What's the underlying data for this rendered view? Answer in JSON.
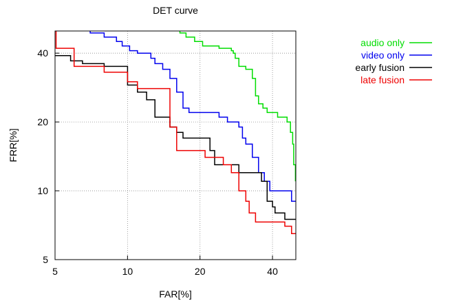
{
  "chart_data": {
    "type": "line",
    "title": "DET curve",
    "xlabel": "FAR[%]",
    "ylabel": "FRR[%]",
    "x_scale": "log",
    "y_scale": "log",
    "xlim": [
      5,
      50
    ],
    "ylim": [
      5,
      50
    ],
    "x_ticks": [
      5,
      10,
      20,
      40
    ],
    "y_ticks": [
      5,
      10,
      20,
      40
    ],
    "grid": true,
    "legend_position": "right",
    "series": [
      {
        "name": "audio only",
        "color": "#00dd00",
        "points": [
          [
            16.5,
            50
          ],
          [
            16.5,
            49
          ],
          [
            17.5,
            49
          ],
          [
            17.5,
            47
          ],
          [
            19,
            47
          ],
          [
            19,
            45
          ],
          [
            20.5,
            45
          ],
          [
            20.5,
            43
          ],
          [
            24,
            43
          ],
          [
            24,
            42
          ],
          [
            27,
            42
          ],
          [
            27,
            41
          ],
          [
            27.5,
            41
          ],
          [
            27.5,
            40
          ],
          [
            28,
            40
          ],
          [
            28,
            38
          ],
          [
            29,
            38
          ],
          [
            29,
            35
          ],
          [
            31,
            35
          ],
          [
            31,
            34
          ],
          [
            33,
            34
          ],
          [
            33,
            31
          ],
          [
            34,
            31
          ],
          [
            34,
            26
          ],
          [
            35,
            26
          ],
          [
            35,
            24
          ],
          [
            36.5,
            24
          ],
          [
            36.5,
            23
          ],
          [
            38,
            23
          ],
          [
            38,
            22
          ],
          [
            42,
            22
          ],
          [
            42,
            21
          ],
          [
            46,
            21
          ],
          [
            46,
            20
          ],
          [
            47.5,
            20
          ],
          [
            47.5,
            18
          ],
          [
            48.5,
            18
          ],
          [
            48.5,
            16
          ],
          [
            49,
            16
          ],
          [
            49,
            13
          ],
          [
            49.8,
            13
          ],
          [
            49.8,
            11
          ]
        ]
      },
      {
        "name": "video only",
        "color": "#0000ee",
        "points": [
          [
            7,
            50
          ],
          [
            7,
            49
          ],
          [
            8,
            49
          ],
          [
            8,
            47
          ],
          [
            9,
            47
          ],
          [
            9,
            45
          ],
          [
            9.5,
            45
          ],
          [
            9.5,
            43
          ],
          [
            10.2,
            43
          ],
          [
            10.2,
            41
          ],
          [
            11,
            41
          ],
          [
            11,
            40
          ],
          [
            12.5,
            40
          ],
          [
            12.5,
            38
          ],
          [
            13,
            38
          ],
          [
            13,
            36
          ],
          [
            14,
            36
          ],
          [
            14,
            34
          ],
          [
            15,
            34
          ],
          [
            15,
            31
          ],
          [
            16,
            31
          ],
          [
            16,
            27
          ],
          [
            17,
            27
          ],
          [
            17,
            23
          ],
          [
            18,
            23
          ],
          [
            18,
            22
          ],
          [
            24,
            22
          ],
          [
            24,
            21
          ],
          [
            26,
            21
          ],
          [
            26,
            20
          ],
          [
            29,
            20
          ],
          [
            29,
            19
          ],
          [
            30,
            19
          ],
          [
            30,
            17
          ],
          [
            31,
            17
          ],
          [
            31,
            16
          ],
          [
            33,
            16
          ],
          [
            33,
            14
          ],
          [
            35,
            14
          ],
          [
            35,
            12
          ],
          [
            37,
            12
          ],
          [
            37,
            11
          ],
          [
            39,
            11
          ],
          [
            39,
            10
          ],
          [
            48,
            10
          ],
          [
            48,
            9
          ],
          [
            50,
            9
          ]
        ]
      },
      {
        "name": "early fusion",
        "color": "#000000",
        "points": [
          [
            5,
            39
          ],
          [
            5.8,
            39
          ],
          [
            5.8,
            37
          ],
          [
            6.5,
            37
          ],
          [
            6.5,
            36
          ],
          [
            8,
            36
          ],
          [
            8,
            35
          ],
          [
            10,
            35
          ],
          [
            10,
            29
          ],
          [
            11,
            29
          ],
          [
            11,
            27
          ],
          [
            12,
            27
          ],
          [
            12,
            25
          ],
          [
            13,
            25
          ],
          [
            13,
            21
          ],
          [
            15,
            21
          ],
          [
            15,
            19
          ],
          [
            16,
            19
          ],
          [
            16,
            18
          ],
          [
            17,
            18
          ],
          [
            17,
            17
          ],
          [
            22,
            17
          ],
          [
            22,
            15
          ],
          [
            23,
            15
          ],
          [
            23,
            13
          ],
          [
            29,
            13
          ],
          [
            29,
            12
          ],
          [
            36,
            12
          ],
          [
            36,
            11
          ],
          [
            38,
            11
          ],
          [
            38,
            9
          ],
          [
            40,
            9
          ],
          [
            40,
            8.5
          ],
          [
            41,
            8.5
          ],
          [
            41,
            8
          ],
          [
            45,
            8
          ],
          [
            45,
            7.5
          ],
          [
            50,
            7.5
          ]
        ]
      },
      {
        "name": "late fusion",
        "color": "#ee0000",
        "points": [
          [
            5.05,
            50
          ],
          [
            5.05,
            42
          ],
          [
            6,
            42
          ],
          [
            6,
            35
          ],
          [
            8,
            35
          ],
          [
            8,
            33
          ],
          [
            10,
            33
          ],
          [
            10,
            30
          ],
          [
            11,
            30
          ],
          [
            11,
            28
          ],
          [
            15,
            28
          ],
          [
            15,
            19
          ],
          [
            16,
            19
          ],
          [
            16,
            15
          ],
          [
            21,
            15
          ],
          [
            21,
            14
          ],
          [
            25,
            14
          ],
          [
            25,
            13
          ],
          [
            27,
            13
          ],
          [
            27,
            12
          ],
          [
            29,
            12
          ],
          [
            29,
            10
          ],
          [
            31,
            10
          ],
          [
            31,
            9
          ],
          [
            32,
            9
          ],
          [
            32,
            8
          ],
          [
            34,
            8
          ],
          [
            34,
            7.3
          ],
          [
            45,
            7.3
          ],
          [
            45,
            7
          ],
          [
            48,
            7
          ],
          [
            48,
            6.5
          ],
          [
            50,
            6.5
          ]
        ]
      }
    ]
  }
}
